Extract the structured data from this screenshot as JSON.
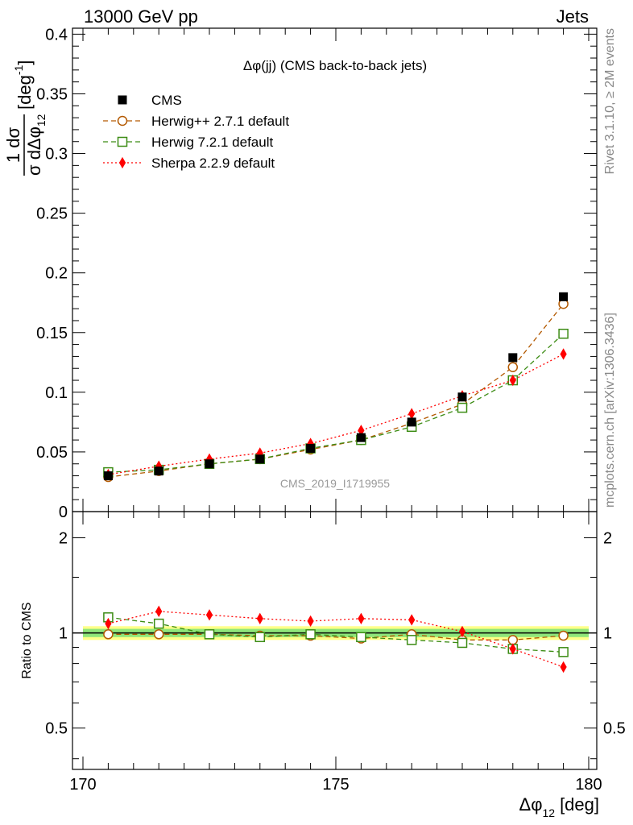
{
  "header": {
    "left_title": "13000 GeV pp",
    "right_title": "Jets"
  },
  "side_labels": {
    "rivet": "Rivet 3.1.10, ≥ 2M events",
    "mcplots": "mcplots.cern.ch [arXiv:1306.3436]"
  },
  "chart_data": {
    "type": "line",
    "title": "Δφ(jj) (CMS back-to-back jets)",
    "watermark": "CMS_2019_I1719955",
    "ylabel_main": {
      "numerator": "1 dσ",
      "denominator": "σ dΔφ",
      "denominator_sub": "12",
      "unit": "[deg",
      "unit_sup": "-1",
      "unit_close": "]"
    },
    "ylabel_ratio": "Ratio to CMS",
    "xlabel": {
      "main": "Δφ",
      "sub": "12",
      "unit": "[deg]"
    },
    "xlim": [
      170,
      180
    ],
    "ylim": [
      0,
      0.405
    ],
    "ratio_ylim": [
      0.37,
      2.42
    ],
    "x_ticks": [
      "170",
      "175",
      "180"
    ],
    "y_ticks": [
      "0",
      "0.05",
      "0.1",
      "0.15",
      "0.2",
      "0.25",
      "0.3",
      "0.35",
      "0.4"
    ],
    "ratio_ticks": [
      "0.5",
      "1",
      "2"
    ],
    "x": [
      170.5,
      171.5,
      172.5,
      173.5,
      174.5,
      175.5,
      176.5,
      177.5,
      178.5,
      179.5
    ],
    "series": [
      {
        "name": "CMS",
        "color": "#000000",
        "marker": "square-filled",
        "values": [
          0.03,
          0.034,
          0.04,
          0.044,
          0.053,
          0.062,
          0.075,
          0.096,
          0.129,
          0.18
        ],
        "ratio": [
          1,
          1,
          1,
          1,
          1,
          1,
          1,
          1,
          1,
          1
        ]
      },
      {
        "name": "Herwig++ 2.7.1 default",
        "color": "#b35900",
        "marker": "circle-open",
        "values": [
          0.029,
          0.034,
          0.04,
          0.044,
          0.052,
          0.06,
          0.074,
          0.09,
          0.121,
          0.174
        ],
        "ratio": [
          0.99,
          0.99,
          0.99,
          0.98,
          0.98,
          0.96,
          0.99,
          0.95,
          0.95,
          0.98
        ]
      },
      {
        "name": "Herwig 7.2.1 default",
        "color": "#3c8c14",
        "marker": "square-open",
        "values": [
          0.033,
          0.035,
          0.04,
          0.044,
          0.053,
          0.06,
          0.071,
          0.087,
          0.11,
          0.149
        ],
        "ratio": [
          1.12,
          1.07,
          0.99,
          0.97,
          0.99,
          0.97,
          0.95,
          0.93,
          0.89,
          0.87
        ]
      },
      {
        "name": "Sherpa 2.2.9 default",
        "color": "#ff0000",
        "marker": "diamond-filled",
        "values": [
          0.031,
          0.038,
          0.044,
          0.049,
          0.057,
          0.068,
          0.082,
          0.097,
          0.11,
          0.132
        ],
        "ratio": [
          1.07,
          1.17,
          1.14,
          1.11,
          1.09,
          1.11,
          1.1,
          1.01,
          0.89,
          0.78
        ]
      }
    ],
    "reference_band": {
      "inner": [
        0.97,
        1.03
      ],
      "outer": [
        0.95,
        1.05
      ],
      "inner_color": "#8fe67a",
      "outer_color": "#ffff88"
    }
  }
}
